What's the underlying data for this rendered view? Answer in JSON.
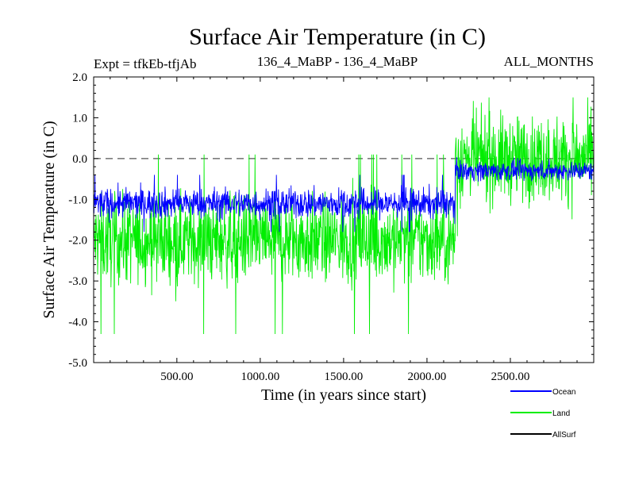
{
  "chart_data": {
    "type": "line",
    "title": "Surface Air Temperature (in C)",
    "subtitle_left": "Expt = tfkEb-tfjAb",
    "subtitle_center": "136_4_MaBP - 136_4_MaBP",
    "subtitle_right": "ALL_MONTHS",
    "xlabel": "Time (in years since start)",
    "ylabel": "Surface Air Temperature (in C)",
    "xlim": [
      1,
      3000
    ],
    "ylim": [
      -5.0,
      2.0
    ],
    "x_ticks": [
      500,
      1000,
      1500,
      2000,
      2500
    ],
    "x_tick_labels": [
      "500.00",
      "1000.00",
      "1500.00",
      "2000.00",
      "2500.00"
    ],
    "y_ticks": [
      -5.0,
      -4.0,
      -3.0,
      -2.0,
      -1.0,
      0.0,
      1.0,
      2.0
    ],
    "y_tick_labels": [
      "-5.0",
      "-4.0",
      "-3.0",
      "-2.0",
      "-1.0",
      "0.0",
      "1.0",
      "2.0"
    ],
    "reference_line": {
      "y": 0.0,
      "style": "dashed"
    },
    "legend_position": "bottom-right",
    "series": [
      {
        "name": "Land",
        "color": "#00ee00",
        "segments": [
          {
            "x_start": 1,
            "x_end": 2170,
            "mean": -2.0,
            "typical_low": -3.0,
            "typical_high": -1.0,
            "min": -4.3,
            "max": 0.1
          },
          {
            "x_start": 2170,
            "x_end": 3000,
            "mean": 0.0,
            "typical_low": -1.0,
            "typical_high": 1.0,
            "min": -1.9,
            "max": 1.5
          }
        ]
      },
      {
        "name": "Ocean",
        "color": "#0000ff",
        "segments": [
          {
            "x_start": 1,
            "x_end": 2170,
            "mean": -1.1,
            "typical_low": -1.4,
            "typical_high": -0.7,
            "min": -1.8,
            "max": -0.4
          },
          {
            "x_start": 2170,
            "x_end": 3000,
            "mean": -0.3,
            "typical_low": -0.5,
            "typical_high": -0.05,
            "min": -0.8,
            "max": 0.1
          }
        ]
      },
      {
        "name": "AllSurf",
        "color": "#000000",
        "segments": []
      }
    ]
  }
}
